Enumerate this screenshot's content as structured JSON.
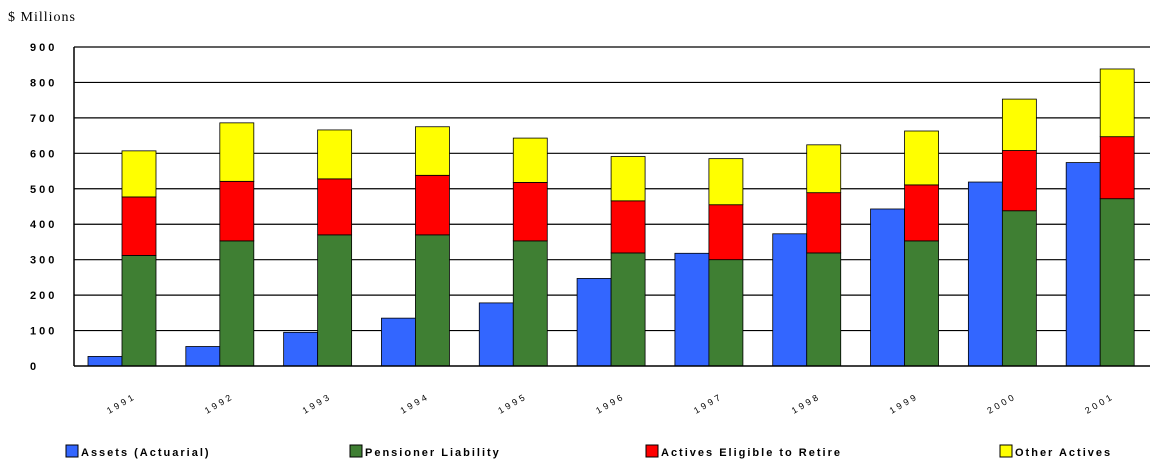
{
  "chart_data": {
    "type": "bar",
    "stacked": true,
    "ylabel": "$ Millions",
    "ylim": [
      0,
      900
    ],
    "y_ticks": [
      "0",
      "100",
      "200",
      "300",
      "400",
      "500",
      "600",
      "700",
      "800",
      "900"
    ],
    "grid": true,
    "categories": [
      "1991",
      "1992",
      "1993",
      "1994",
      "1995",
      "1996",
      "1997",
      "1998",
      "1999",
      "2000",
      "2001"
    ],
    "assets": {
      "name": "Assets (Actuarial)",
      "color": "#3366ff",
      "values": [
        27,
        55,
        95,
        135,
        178,
        247,
        318,
        373,
        443,
        519,
        574
      ]
    },
    "series": [
      {
        "name": "Pensioner Liability",
        "color": "#3f7f33",
        "values": [
          312,
          353,
          370,
          370,
          353,
          319,
          300,
          319,
          353,
          438,
          472
        ]
      },
      {
        "name": "Actives Eligible to Retire",
        "color": "#ff0000",
        "values": [
          165,
          168,
          158,
          168,
          165,
          147,
          155,
          170,
          158,
          170,
          175
        ]
      },
      {
        "name": "Other Actives",
        "color": "#ffff00",
        "values": [
          130,
          165,
          138,
          137,
          125,
          125,
          130,
          135,
          152,
          145,
          191
        ]
      }
    ],
    "legend_position": "bottom"
  }
}
